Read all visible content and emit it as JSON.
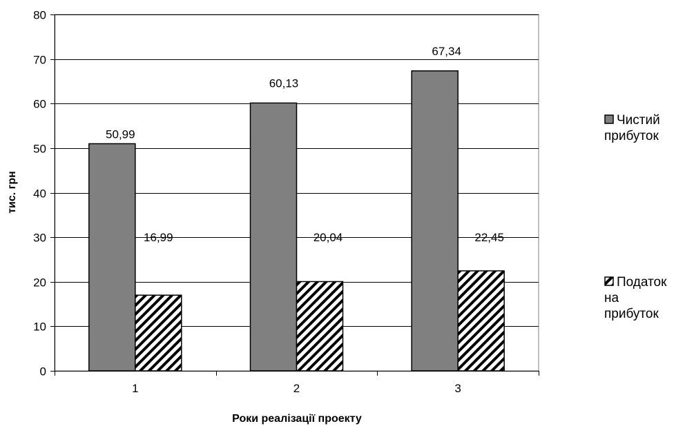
{
  "chart_data": {
    "type": "bar",
    "categories": [
      "1",
      "2",
      "3"
    ],
    "series": [
      {
        "name": "Чистий прибуток",
        "values": [
          50.99,
          60.13,
          67.34
        ],
        "labels": [
          "50,99",
          "60,13",
          "67,34"
        ],
        "fill": "#808080",
        "pattern": "solid"
      },
      {
        "name": "Податок на прибуток",
        "values": [
          16.99,
          20.04,
          22.45
        ],
        "labels": [
          "16,99",
          "20,04",
          "22,45"
        ],
        "fill": "#ffffff",
        "pattern": "diagonal-hatch"
      }
    ],
    "xlabel": "Роки реалізації проекту",
    "ylabel": "тис. грн",
    "ylim": [
      0,
      80
    ],
    "yticks": [
      "0",
      "10",
      "20",
      "30",
      "40",
      "50",
      "60",
      "70",
      "80"
    ],
    "grid": true,
    "legend_position": "right",
    "legend": [
      {
        "lines": [
          "Чистий",
          "прибуток"
        ]
      },
      {
        "lines": [
          "Податок",
          "на",
          "прибуток"
        ]
      }
    ]
  }
}
